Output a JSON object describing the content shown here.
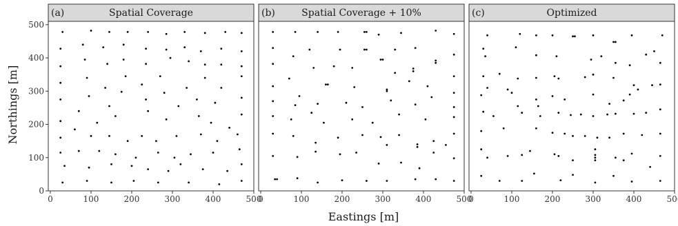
{
  "chart_data": {
    "type": "scatter",
    "xlabel": "Eastings [m]",
    "ylabel": "Northings [m]",
    "xlim": [
      -5,
      500
    ],
    "ylim": [
      0,
      510
    ],
    "xticks": [
      0,
      100,
      200,
      300,
      400,
      500
    ],
    "yticks": [
      0,
      100,
      200,
      300,
      400,
      500
    ],
    "panels": [
      {
        "tag": "(a)",
        "title": "Spatial Coverage",
        "points": [
          [
            30,
            478
          ],
          [
            100,
            482
          ],
          [
            145,
            478
          ],
          [
            190,
            478
          ],
          [
            240,
            478
          ],
          [
            285,
            472
          ],
          [
            330,
            478
          ],
          [
            380,
            475
          ],
          [
            430,
            478
          ],
          [
            470,
            475
          ],
          [
            25,
            428
          ],
          [
            80,
            440
          ],
          [
            130,
            432
          ],
          [
            180,
            440
          ],
          [
            235,
            428
          ],
          [
            285,
            425
          ],
          [
            330,
            432
          ],
          [
            370,
            420
          ],
          [
            420,
            428
          ],
          [
            470,
            420
          ],
          [
            25,
            375
          ],
          [
            85,
            395
          ],
          [
            140,
            382
          ],
          [
            180,
            395
          ],
          [
            235,
            382
          ],
          [
            295,
            400
          ],
          [
            340,
            390
          ],
          [
            380,
            380
          ],
          [
            420,
            380
          ],
          [
            470,
            375
          ],
          [
            25,
            325
          ],
          [
            90,
            340
          ],
          [
            135,
            310
          ],
          [
            185,
            345
          ],
          [
            225,
            320
          ],
          [
            270,
            345
          ],
          [
            335,
            310
          ],
          [
            380,
            340
          ],
          [
            420,
            310
          ],
          [
            470,
            345
          ],
          [
            25,
            275
          ],
          [
            95,
            285
          ],
          [
            145,
            255
          ],
          [
            175,
            298
          ],
          [
            235,
            275
          ],
          [
            280,
            295
          ],
          [
            315,
            255
          ],
          [
            360,
            275
          ],
          [
            405,
            265
          ],
          [
            470,
            280
          ],
          [
            25,
            210
          ],
          [
            70,
            240
          ],
          [
            115,
            205
          ],
          [
            160,
            225
          ],
          [
            240,
            240
          ],
          [
            285,
            215
          ],
          [
            365,
            225
          ],
          [
            395,
            205
          ],
          [
            440,
            190
          ],
          [
            470,
            230
          ],
          [
            25,
            160
          ],
          [
            60,
            185
          ],
          [
            100,
            165
          ],
          [
            145,
            165
          ],
          [
            190,
            150
          ],
          [
            225,
            165
          ],
          [
            260,
            150
          ],
          [
            310,
            165
          ],
          [
            370,
            170
          ],
          [
            410,
            150
          ],
          [
            460,
            170
          ],
          [
            25,
            115
          ],
          [
            70,
            120
          ],
          [
            120,
            120
          ],
          [
            160,
            110
          ],
          [
            210,
            100
          ],
          [
            265,
            115
          ],
          [
            305,
            100
          ],
          [
            345,
            110
          ],
          [
            400,
            115
          ],
          [
            465,
            125
          ],
          [
            35,
            75
          ],
          [
            95,
            70
          ],
          [
            150,
            80
          ],
          [
            200,
            75
          ],
          [
            240,
            65
          ],
          [
            290,
            60
          ],
          [
            320,
            80
          ],
          [
            375,
            65
          ],
          [
            435,
            60
          ],
          [
            470,
            80
          ],
          [
            30,
            25
          ],
          [
            90,
            30
          ],
          [
            150,
            25
          ],
          [
            205,
            30
          ],
          [
            265,
            25
          ],
          [
            340,
            25
          ],
          [
            415,
            20
          ],
          [
            470,
            30
          ]
        ]
      },
      {
        "tag": "(b)",
        "title": "Spatial Coverage + 10%",
        "points": [
          [
            30,
            478
          ],
          [
            85,
            478
          ],
          [
            140,
            478
          ],
          [
            190,
            478
          ],
          [
            255,
            478
          ],
          [
            260,
            478
          ],
          [
            290,
            470
          ],
          [
            345,
            475
          ],
          [
            430,
            482
          ],
          [
            475,
            472
          ],
          [
            30,
            430
          ],
          [
            120,
            425
          ],
          [
            195,
            425
          ],
          [
            255,
            425
          ],
          [
            260,
            425
          ],
          [
            330,
            425
          ],
          [
            380,
            430
          ],
          [
            430,
            392
          ],
          [
            430,
            385
          ],
          [
            475,
            410
          ],
          [
            30,
            382
          ],
          [
            80,
            405
          ],
          [
            130,
            370
          ],
          [
            180,
            375
          ],
          [
            225,
            370
          ],
          [
            295,
            395
          ],
          [
            300,
            395
          ],
          [
            330,
            355
          ],
          [
            375,
            368
          ],
          [
            375,
            360
          ],
          [
            475,
            345
          ],
          [
            30,
            315
          ],
          [
            70,
            338
          ],
          [
            95,
            285
          ],
          [
            160,
            320
          ],
          [
            165,
            320
          ],
          [
            230,
            312
          ],
          [
            310,
            305
          ],
          [
            310,
            300
          ],
          [
            365,
            330
          ],
          [
            410,
            315
          ],
          [
            475,
            295
          ],
          [
            30,
            270
          ],
          [
            85,
            258
          ],
          [
            140,
            262
          ],
          [
            210,
            265
          ],
          [
            250,
            252
          ],
          [
            320,
            272
          ],
          [
            380,
            260
          ],
          [
            420,
            282
          ],
          [
            475,
            252
          ],
          [
            30,
            225
          ],
          [
            75,
            215
          ],
          [
            125,
            235
          ],
          [
            155,
            205
          ],
          [
            225,
            215
          ],
          [
            275,
            205
          ],
          [
            340,
            230
          ],
          [
            405,
            215
          ],
          [
            475,
            222
          ],
          [
            30,
            172
          ],
          [
            80,
            165
          ],
          [
            135,
            145
          ],
          [
            190,
            160
          ],
          [
            250,
            168
          ],
          [
            295,
            162
          ],
          [
            310,
            138
          ],
          [
            340,
            168
          ],
          [
            385,
            140
          ],
          [
            385,
            132
          ],
          [
            425,
            150
          ],
          [
            455,
            138
          ],
          [
            475,
            172
          ],
          [
            30,
            105
          ],
          [
            90,
            102
          ],
          [
            135,
            118
          ],
          [
            195,
            110
          ],
          [
            235,
            115
          ],
          [
            290,
            82
          ],
          [
            345,
            85
          ],
          [
            390,
            68
          ],
          [
            425,
            115
          ],
          [
            475,
            98
          ],
          [
            35,
            35
          ],
          [
            40,
            35
          ],
          [
            90,
            38
          ],
          [
            140,
            25
          ],
          [
            200,
            32
          ],
          [
            260,
            30
          ],
          [
            310,
            30
          ],
          [
            380,
            35
          ],
          [
            430,
            35
          ],
          [
            475,
            30
          ]
        ]
      },
      {
        "tag": "(c)",
        "title": "Optimized",
        "points": [
          [
            40,
            468
          ],
          [
            120,
            472
          ],
          [
            160,
            468
          ],
          [
            200,
            468
          ],
          [
            250,
            465
          ],
          [
            255,
            465
          ],
          [
            300,
            468
          ],
          [
            350,
            448
          ],
          [
            355,
            448
          ],
          [
            395,
            468
          ],
          [
            470,
            468
          ],
          [
            30,
            428
          ],
          [
            35,
            405
          ],
          [
            110,
            432
          ],
          [
            160,
            408
          ],
          [
            210,
            405
          ],
          [
            295,
            395
          ],
          [
            320,
            405
          ],
          [
            355,
            385
          ],
          [
            390,
            378
          ],
          [
            430,
            410
          ],
          [
            450,
            420
          ],
          [
            465,
            385
          ],
          [
            30,
            345
          ],
          [
            40,
            310
          ],
          [
            70,
            352
          ],
          [
            115,
            338
          ],
          [
            160,
            340
          ],
          [
            205,
            345
          ],
          [
            215,
            338
          ],
          [
            280,
            342
          ],
          [
            300,
            350
          ],
          [
            350,
            340
          ],
          [
            400,
            318
          ],
          [
            445,
            318
          ],
          [
            465,
            320
          ],
          [
            25,
            288
          ],
          [
            90,
            305
          ],
          [
            100,
            295
          ],
          [
            160,
            275
          ],
          [
            165,
            255
          ],
          [
            200,
            285
          ],
          [
            230,
            275
          ],
          [
            300,
            290
          ],
          [
            340,
            262
          ],
          [
            375,
            272
          ],
          [
            390,
            290
          ],
          [
            410,
            305
          ],
          [
            30,
            238
          ],
          [
            55,
            225
          ],
          [
            115,
            255
          ],
          [
            125,
            235
          ],
          [
            170,
            225
          ],
          [
            215,
            235
          ],
          [
            245,
            228
          ],
          [
            270,
            230
          ],
          [
            300,
            225
          ],
          [
            335,
            230
          ],
          [
            355,
            232
          ],
          [
            400,
            232
          ],
          [
            430,
            235
          ],
          [
            465,
            245
          ],
          [
            25,
            180
          ],
          [
            80,
            188
          ],
          [
            160,
            188
          ],
          [
            200,
            175
          ],
          [
            230,
            172
          ],
          [
            250,
            165
          ],
          [
            280,
            165
          ],
          [
            310,
            160
          ],
          [
            340,
            160
          ],
          [
            375,
            172
          ],
          [
            420,
            168
          ],
          [
            465,
            172
          ],
          [
            25,
            125
          ],
          [
            40,
            100
          ],
          [
            90,
            105
          ],
          [
            125,
            108
          ],
          [
            145,
            120
          ],
          [
            205,
            110
          ],
          [
            215,
            105
          ],
          [
            250,
            92
          ],
          [
            305,
            125
          ],
          [
            305,
            108
          ],
          [
            305,
            100
          ],
          [
            305,
            92
          ],
          [
            355,
            100
          ],
          [
            375,
            92
          ],
          [
            395,
            112
          ],
          [
            440,
            72
          ],
          [
            465,
            105
          ],
          [
            25,
            45
          ],
          [
            70,
            30
          ],
          [
            125,
            30
          ],
          [
            155,
            52
          ],
          [
            220,
            32
          ],
          [
            250,
            48
          ],
          [
            305,
            25
          ],
          [
            350,
            45
          ],
          [
            395,
            28
          ],
          [
            465,
            30
          ]
        ]
      }
    ]
  }
}
